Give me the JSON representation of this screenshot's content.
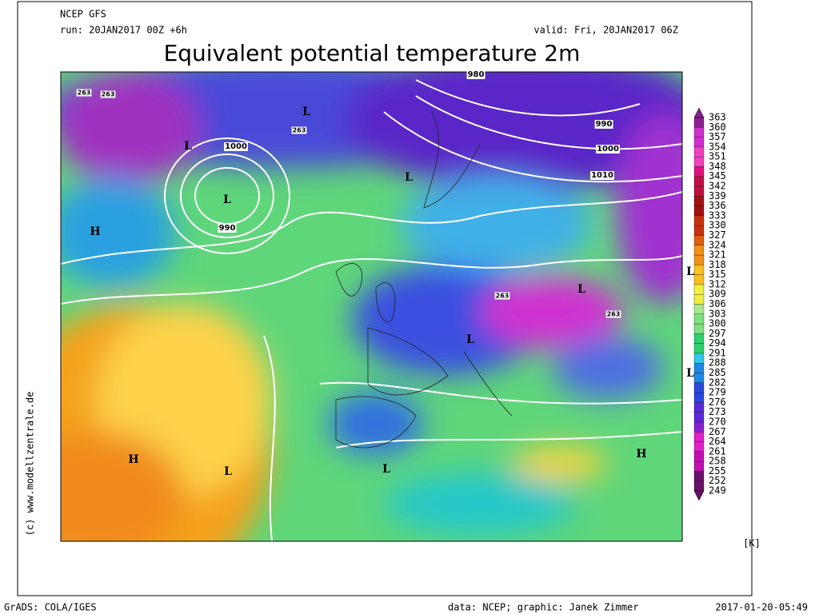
{
  "header": {
    "model": "NCEP GFS",
    "run": "run: 20JAN2017 00Z +6h",
    "valid": "valid: Fri, 20JAN2017 06Z",
    "title": "Equivalent potential temperature 2m"
  },
  "side_credit": "(c) www.modellzentrale.de",
  "colorbar": {
    "levels": [
      249,
      252,
      255,
      258,
      261,
      264,
      267,
      270,
      273,
      276,
      279,
      282,
      285,
      288,
      291,
      294,
      297,
      300,
      303,
      306,
      309,
      312,
      315,
      318,
      321,
      324,
      327,
      330,
      333,
      336,
      339,
      342,
      345,
      348,
      351,
      354,
      357,
      360,
      363
    ],
    "unit": "[K]"
  },
  "map": {
    "pressure_centers": [
      "L",
      "L",
      "L",
      "L",
      "L",
      "L",
      "L",
      "L",
      "L",
      "L",
      "H",
      "H",
      "H"
    ],
    "contour_labels": [
      "1000",
      "990",
      "990",
      "1000",
      "1010",
      "980",
      "263",
      "263",
      "263",
      "263",
      "263"
    ]
  },
  "footer": {
    "software": "GrADS: COLA/IGES",
    "credits": "data: NCEP; graphic: Janek Zimmer",
    "timestamp": "2017-01-20-05:49"
  }
}
